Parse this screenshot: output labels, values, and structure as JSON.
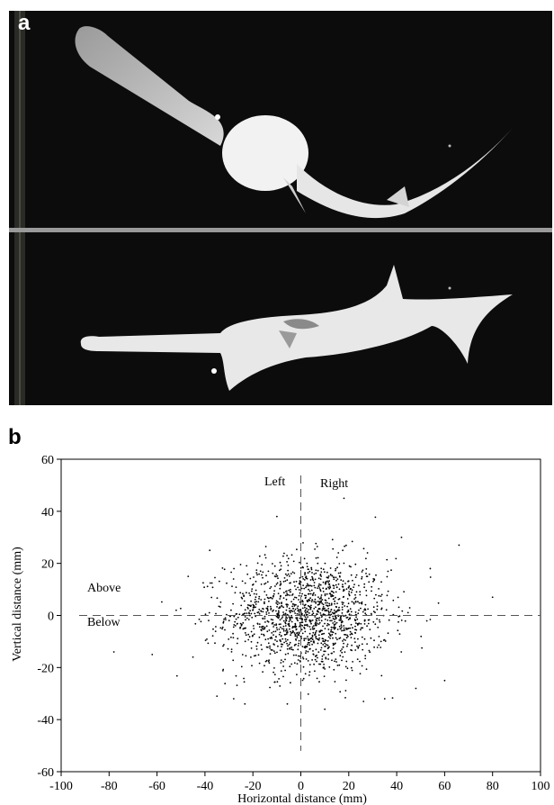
{
  "panels": {
    "a": {
      "label": "a"
    },
    "b": {
      "label": "b"
    }
  },
  "chart_data": {
    "type": "scatter",
    "title": "",
    "xlabel": "Horizontal distance (mm)",
    "ylabel": "Vertical distance (mm)",
    "xlim": [
      -100,
      100
    ],
    "ylim": [
      -60,
      60
    ],
    "xticks": [
      -100,
      -80,
      -60,
      -40,
      -20,
      0,
      20,
      40,
      60,
      80,
      100
    ],
    "yticks": [
      -60,
      -40,
      -20,
      0,
      20,
      40,
      60
    ],
    "grid": false,
    "quadrant_labels": {
      "left": "Left",
      "right": "Right",
      "above": "Above",
      "below": "Below"
    },
    "point_count_estimate": 1500,
    "distribution": {
      "mean_x": 3,
      "mean_y": 0,
      "sd_x": 17,
      "sd_y": 11
    },
    "outliers": [
      {
        "x": -78,
        "y": -14
      },
      {
        "x": 80,
        "y": 7
      },
      {
        "x": 66,
        "y": 27
      },
      {
        "x": 60,
        "y": -25
      },
      {
        "x": -62,
        "y": -15
      },
      {
        "x": -47,
        "y": 15
      },
      {
        "x": -45,
        "y": -16
      },
      {
        "x": 18,
        "y": 45
      },
      {
        "x": 48,
        "y": -28
      },
      {
        "x": -35,
        "y": -31
      },
      {
        "x": 42,
        "y": 30
      },
      {
        "x": -38,
        "y": 25
      },
      {
        "x": 54,
        "y": 18
      },
      {
        "x": -52,
        "y": 2
      },
      {
        "x": 35,
        "y": -32
      },
      {
        "x": -28,
        "y": -32
      },
      {
        "x": -10,
        "y": 38
      },
      {
        "x": 10,
        "y": -36
      }
    ]
  }
}
